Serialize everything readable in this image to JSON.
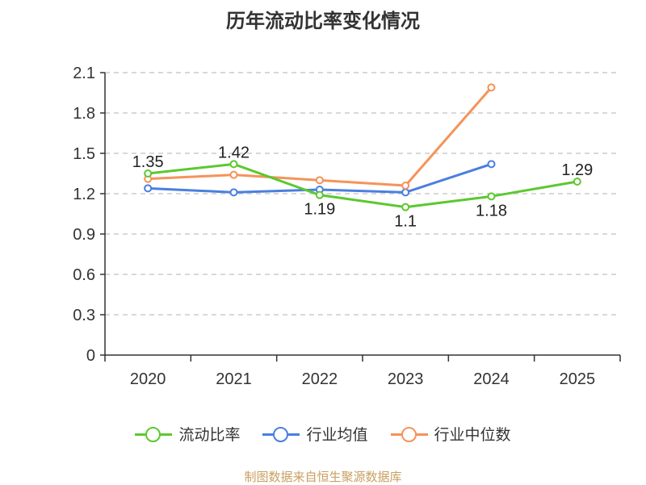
{
  "chart_data": {
    "type": "line",
    "title": "历年流动比率变化情况",
    "categories": [
      "2020",
      "2021",
      "2022",
      "2023",
      "2024",
      "2025"
    ],
    "ylim": [
      0,
      2.1
    ],
    "yticks": [
      "0",
      "0.3",
      "0.6",
      "0.9",
      "1.2",
      "1.5",
      "1.8",
      "2.1"
    ],
    "grid": true,
    "legend_position": "bottom",
    "series": [
      {
        "name": "流动比率",
        "color": "#5cc830",
        "values": [
          1.35,
          1.42,
          1.19,
          1.1,
          1.18,
          1.29
        ],
        "labels": [
          "1.35",
          "1.42",
          "1.19",
          "1.1",
          "1.18",
          "1.29"
        ]
      },
      {
        "name": "行业均值",
        "color": "#4a7fe0",
        "values": [
          1.24,
          1.21,
          1.23,
          1.21,
          1.42,
          null
        ]
      },
      {
        "name": "行业中位数",
        "color": "#f5935a",
        "values": [
          1.31,
          1.34,
          1.3,
          1.26,
          1.99,
          null
        ]
      }
    ]
  },
  "source": "制图数据来自恒生聚源数据库"
}
